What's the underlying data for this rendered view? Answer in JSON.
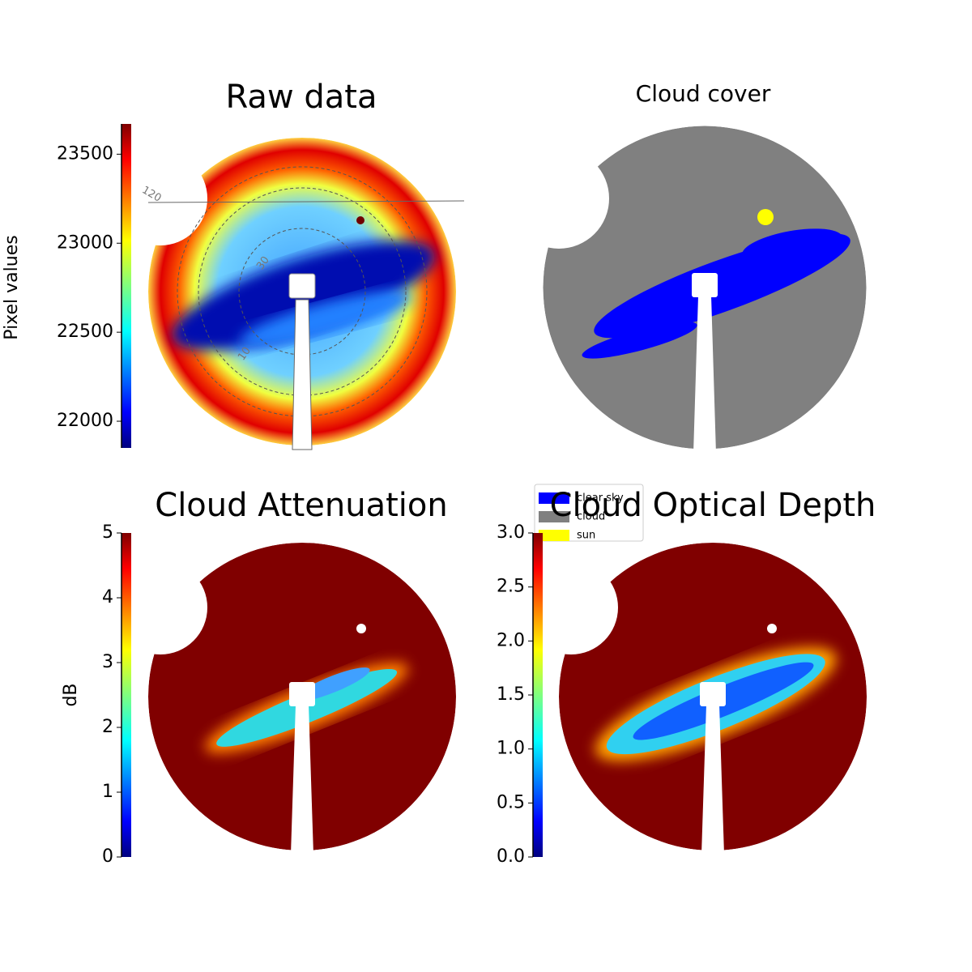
{
  "chart_data": [
    {
      "type": "image",
      "title": "Raw data",
      "colormap": "jet",
      "ylabel": "Pixel values",
      "ylim": [
        21850,
        23670
      ],
      "yticks": [
        22000,
        22500,
        23000,
        23500
      ],
      "annotations": [
        "120",
        "30",
        "10"
      ]
    },
    {
      "type": "image",
      "title": "Cloud cover",
      "series": [
        {
          "name": "clear sky",
          "color": "#0000ff"
        },
        {
          "name": "cloud",
          "color": "#808080"
        },
        {
          "name": "sun",
          "color": "#ffff00"
        }
      ]
    },
    {
      "type": "image",
      "title": "Cloud Attenuation",
      "colormap": "jet",
      "ylabel": "dB",
      "ylim": [
        0,
        5
      ],
      "yticks": [
        0,
        1,
        2,
        3,
        4,
        5
      ]
    },
    {
      "type": "image",
      "title": "Cloud Optical Depth",
      "colormap": "jet",
      "ylim": [
        0,
        3
      ],
      "yticks": [
        {
          "value": 0,
          "label": "0.0"
        },
        0.5,
        {
          "value": 1,
          "label": "1.0"
        },
        1.5,
        {
          "value": 2,
          "label": "2.0"
        },
        2.5,
        {
          "value": 3,
          "label": "3.0"
        }
      ]
    }
  ]
}
